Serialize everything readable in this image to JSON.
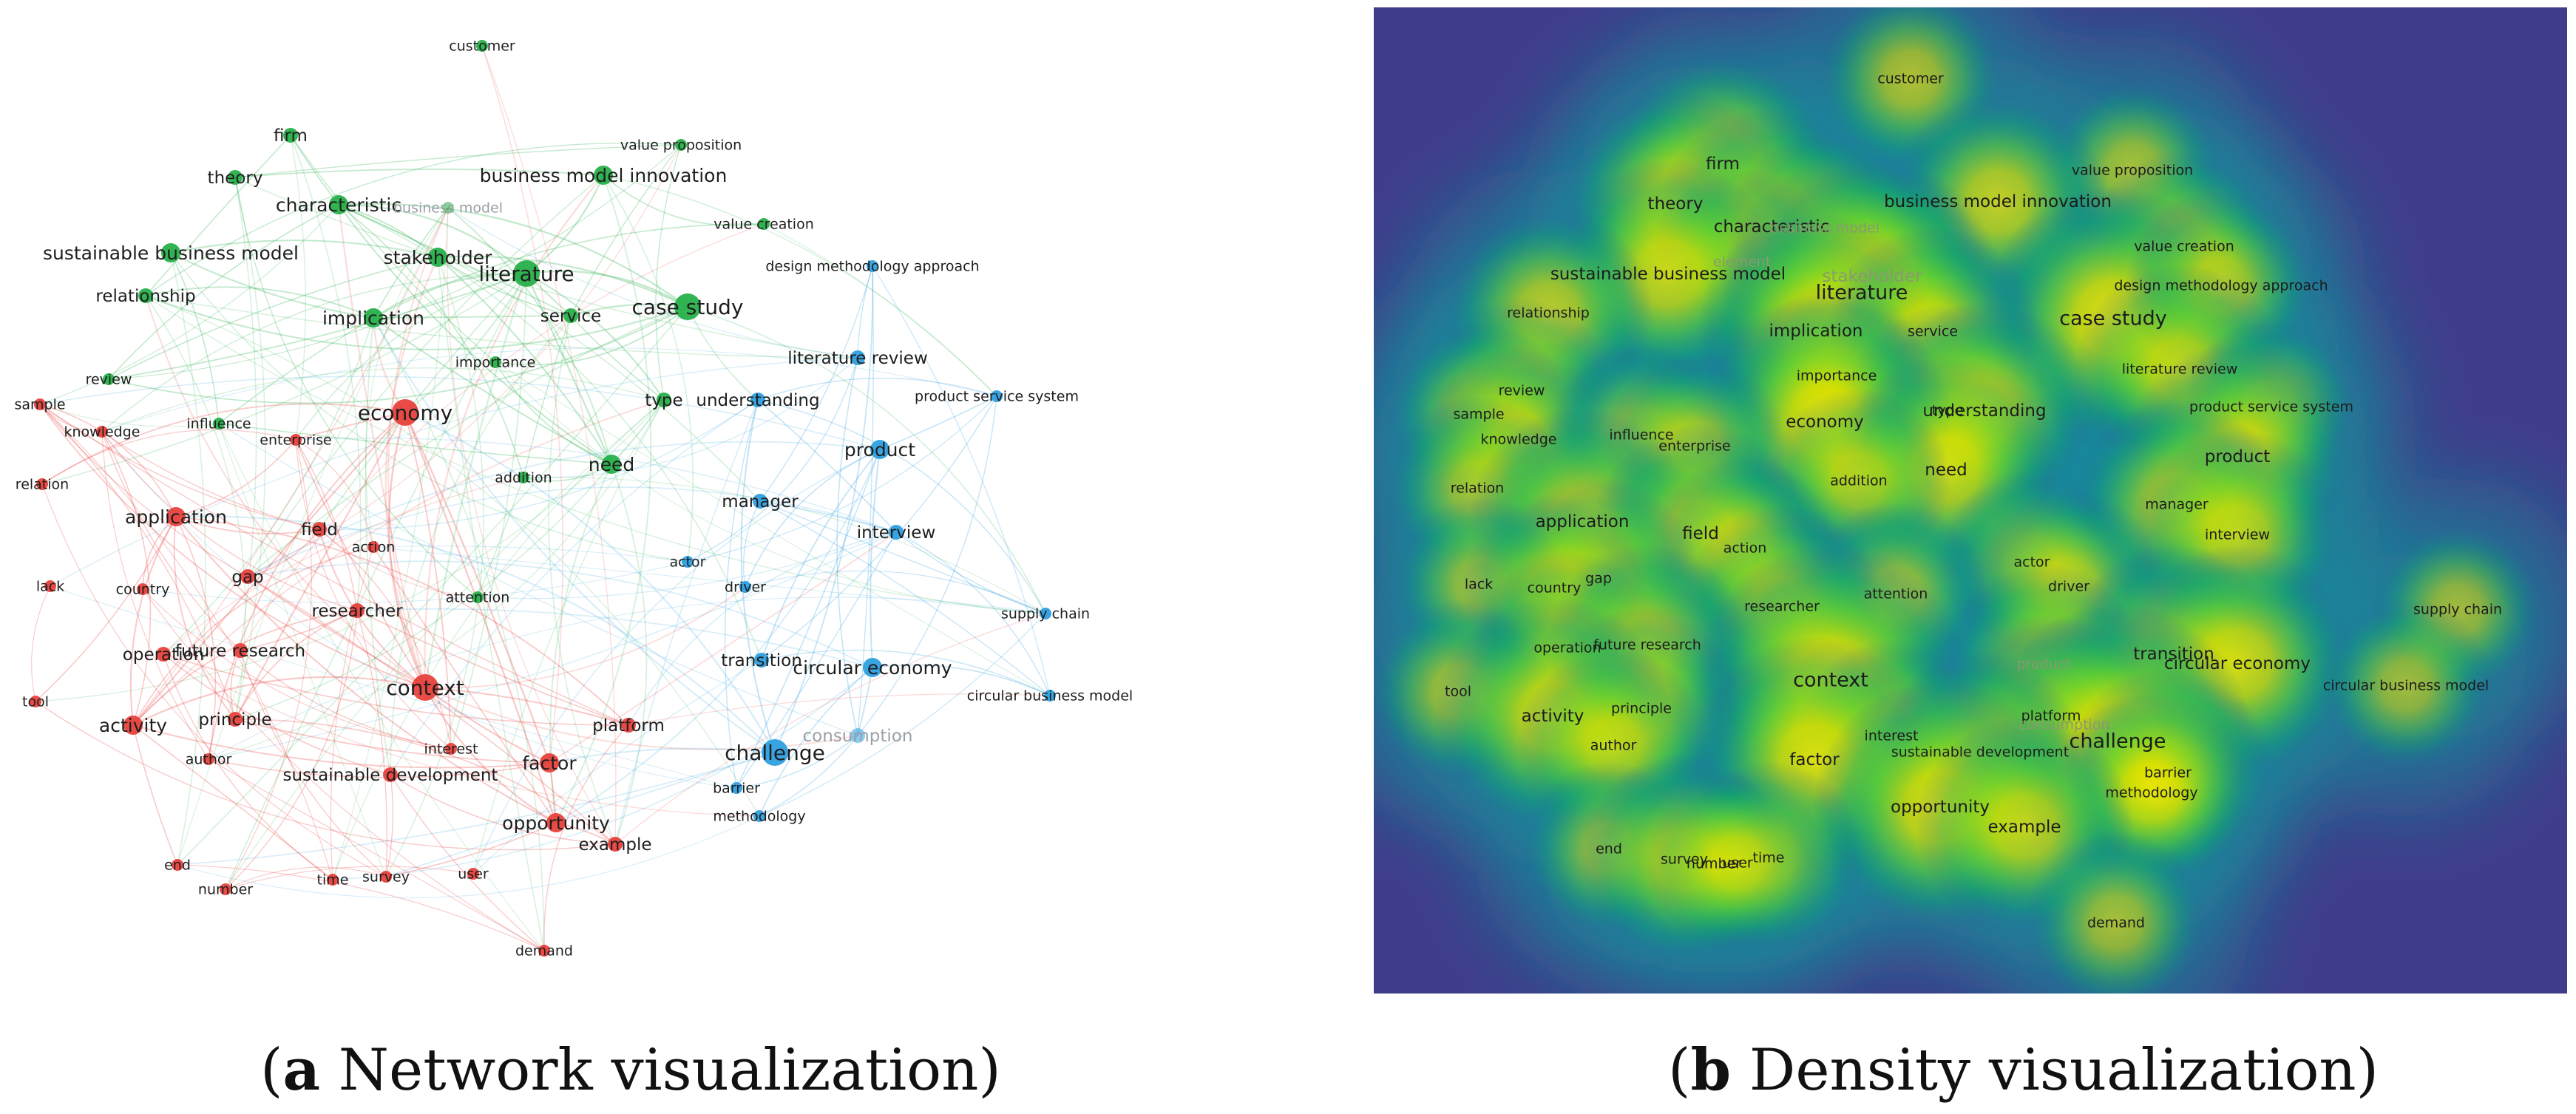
{
  "colors": {
    "cluster_red": "#e8413c",
    "cluster_green": "#27b04a",
    "cluster_blue": "#2e9fe0",
    "density_background": "#3f3d8a",
    "density_peak": "#fff200"
  },
  "captions": {
    "a": {
      "letter": "a",
      "text": " Network visualization"
    },
    "b": {
      "letter": "b",
      "text": " Density visualization"
    }
  },
  "network": {
    "nodes": [
      {
        "label": "customer",
        "cluster": "green",
        "w": 1
      },
      {
        "label": "firm",
        "cluster": "green",
        "w": 2
      },
      {
        "label": "value proposition",
        "cluster": "green",
        "w": 1
      },
      {
        "label": "theory",
        "cluster": "green",
        "w": 2
      },
      {
        "label": "business model innovation",
        "cluster": "green",
        "w": 3
      },
      {
        "label": "characteristic",
        "cluster": "green",
        "w": 3
      },
      {
        "label": "business model",
        "cluster": "green",
        "w": 1,
        "faded": true
      },
      {
        "label": "value creation",
        "cluster": "green",
        "w": 1
      },
      {
        "label": "sustainable business model",
        "cluster": "green",
        "w": 3
      },
      {
        "label": "stakeholder",
        "cluster": "green",
        "w": 3
      },
      {
        "label": "literature",
        "cluster": "green",
        "w": 4
      },
      {
        "label": "case study",
        "cluster": "green",
        "w": 4
      },
      {
        "label": "relationship",
        "cluster": "green",
        "w": 2
      },
      {
        "label": "implication",
        "cluster": "green",
        "w": 3
      },
      {
        "label": "service",
        "cluster": "green",
        "w": 2
      },
      {
        "label": "importance",
        "cluster": "green",
        "w": 1
      },
      {
        "label": "review",
        "cluster": "green",
        "w": 1
      },
      {
        "label": "influence",
        "cluster": "green",
        "w": 1
      },
      {
        "label": "type",
        "cluster": "green",
        "w": 2
      },
      {
        "label": "addition",
        "cluster": "green",
        "w": 1
      },
      {
        "label": "need",
        "cluster": "green",
        "w": 3
      },
      {
        "label": "attention",
        "cluster": "green",
        "w": 1
      },
      {
        "label": "design methodology approach",
        "cluster": "blue",
        "w": 1
      },
      {
        "label": "literature review",
        "cluster": "blue",
        "w": 2
      },
      {
        "label": "understanding",
        "cluster": "blue",
        "w": 2
      },
      {
        "label": "product service system",
        "cluster": "blue",
        "w": 1
      },
      {
        "label": "product",
        "cluster": "blue",
        "w": 3
      },
      {
        "label": "manager",
        "cluster": "blue",
        "w": 2
      },
      {
        "label": "interview",
        "cluster": "blue",
        "w": 2
      },
      {
        "label": "actor",
        "cluster": "blue",
        "w": 1
      },
      {
        "label": "driver",
        "cluster": "blue",
        "w": 1
      },
      {
        "label": "supply chain",
        "cluster": "blue",
        "w": 1
      },
      {
        "label": "transition",
        "cluster": "blue",
        "w": 2
      },
      {
        "label": "circular economy",
        "cluster": "blue",
        "w": 3
      },
      {
        "label": "circular business model",
        "cluster": "blue",
        "w": 1
      },
      {
        "label": "consumption",
        "cluster": "blue",
        "w": 2,
        "faded": true
      },
      {
        "label": "challenge",
        "cluster": "blue",
        "w": 4
      },
      {
        "label": "barrier",
        "cluster": "blue",
        "w": 1
      },
      {
        "label": "methodology",
        "cluster": "blue",
        "w": 1
      },
      {
        "label": "sample",
        "cluster": "red",
        "w": 1
      },
      {
        "label": "knowledge",
        "cluster": "red",
        "w": 1
      },
      {
        "label": "economy",
        "cluster": "red",
        "w": 4
      },
      {
        "label": "enterprise",
        "cluster": "red",
        "w": 1
      },
      {
        "label": "relation",
        "cluster": "red",
        "w": 1
      },
      {
        "label": "application",
        "cluster": "red",
        "w": 3
      },
      {
        "label": "field",
        "cluster": "red",
        "w": 2
      },
      {
        "label": "action",
        "cluster": "red",
        "w": 1
      },
      {
        "label": "gap",
        "cluster": "red",
        "w": 2
      },
      {
        "label": "lack",
        "cluster": "red",
        "w": 1
      },
      {
        "label": "country",
        "cluster": "red",
        "w": 1
      },
      {
        "label": "researcher",
        "cluster": "red",
        "w": 2
      },
      {
        "label": "operation",
        "cluster": "red",
        "w": 2
      },
      {
        "label": "future research",
        "cluster": "red",
        "w": 2
      },
      {
        "label": "context",
        "cluster": "red",
        "w": 4
      },
      {
        "label": "tool",
        "cluster": "red",
        "w": 1
      },
      {
        "label": "activity",
        "cluster": "red",
        "w": 3
      },
      {
        "label": "principle",
        "cluster": "red",
        "w": 2
      },
      {
        "label": "platform",
        "cluster": "red",
        "w": 2
      },
      {
        "label": "interest",
        "cluster": "red",
        "w": 1
      },
      {
        "label": "author",
        "cluster": "red",
        "w": 1
      },
      {
        "label": "factor",
        "cluster": "red",
        "w": 3
      },
      {
        "label": "sustainable development",
        "cluster": "red",
        "w": 2
      },
      {
        "label": "opportunity",
        "cluster": "red",
        "w": 3
      },
      {
        "label": "example",
        "cluster": "red",
        "w": 2
      },
      {
        "label": "end",
        "cluster": "red",
        "w": 1
      },
      {
        "label": "time",
        "cluster": "red",
        "w": 1
      },
      {
        "label": "survey",
        "cluster": "red",
        "w": 1
      },
      {
        "label": "user",
        "cluster": "red",
        "w": 1
      },
      {
        "label": "number",
        "cluster": "red",
        "w": 1
      },
      {
        "label": "demand",
        "cluster": "red",
        "w": 1
      }
    ]
  },
  "density": {
    "labels": [
      {
        "label": "customer",
        "d": 0.5
      },
      {
        "label": "firm",
        "d": 0.7
      },
      {
        "label": "value proposition",
        "d": 0.45
      },
      {
        "label": "theory",
        "d": 0.7
      },
      {
        "label": "business model innovation",
        "d": 0.65
      },
      {
        "label": "characteristic",
        "d": 0.75
      },
      {
        "label": "business model",
        "d": 0.5,
        "faded": true
      },
      {
        "label": "value creation",
        "d": 0.5
      },
      {
        "label": "element",
        "d": 0.45,
        "faded": true
      },
      {
        "label": "sustainable business model",
        "d": 0.7
      },
      {
        "label": "stakeholder",
        "d": 0.7,
        "faded": true
      },
      {
        "label": "literature",
        "d": 1.0
      },
      {
        "label": "case study",
        "d": 0.9
      },
      {
        "label": "design methodology approach",
        "d": 0.5
      },
      {
        "label": "relationship",
        "d": 0.6
      },
      {
        "label": "implication",
        "d": 0.75
      },
      {
        "label": "service",
        "d": 0.6
      },
      {
        "label": "importance",
        "d": 0.45
      },
      {
        "label": "literature review",
        "d": 0.6
      },
      {
        "label": "review",
        "d": 0.45
      },
      {
        "label": "type",
        "d": 0.6
      },
      {
        "label": "understanding",
        "d": 0.65
      },
      {
        "label": "product service system",
        "d": 0.4
      },
      {
        "label": "sample",
        "d": 0.45
      },
      {
        "label": "economy",
        "d": 0.85
      },
      {
        "label": "knowledge",
        "d": 0.45
      },
      {
        "label": "influence",
        "d": 0.45
      },
      {
        "label": "enterprise",
        "d": 0.45
      },
      {
        "label": "product",
        "d": 0.7
      },
      {
        "label": "need",
        "d": 0.7
      },
      {
        "label": "addition",
        "d": 0.45
      },
      {
        "label": "relation",
        "d": 0.45
      },
      {
        "label": "manager",
        "d": 0.6
      },
      {
        "label": "application",
        "d": 0.7
      },
      {
        "label": "field",
        "d": 0.65
      },
      {
        "label": "interview",
        "d": 0.6
      },
      {
        "label": "action",
        "d": 0.45
      },
      {
        "label": "actor",
        "d": 0.45
      },
      {
        "label": "gap",
        "d": 0.55
      },
      {
        "label": "lack",
        "d": 0.4
      },
      {
        "label": "country",
        "d": 0.45
      },
      {
        "label": "driver",
        "d": 0.5
      },
      {
        "label": "attention",
        "d": 0.45
      },
      {
        "label": "researcher",
        "d": 0.55
      },
      {
        "label": "supply chain",
        "d": 0.4
      },
      {
        "label": "operation",
        "d": 0.5
      },
      {
        "label": "future research",
        "d": 0.55
      },
      {
        "label": "transition",
        "d": 0.65
      },
      {
        "label": "product",
        "d": 0.55,
        "faded": true
      },
      {
        "label": "circular economy",
        "d": 0.75
      },
      {
        "label": "context",
        "d": 0.95
      },
      {
        "label": "circular business model",
        "d": 0.4
      },
      {
        "label": "tool",
        "d": 0.45
      },
      {
        "label": "principle",
        "d": 0.55
      },
      {
        "label": "activity",
        "d": 0.75
      },
      {
        "label": "platform",
        "d": 0.55
      },
      {
        "label": "consumption",
        "d": 0.6,
        "faded": true
      },
      {
        "label": "interest",
        "d": 0.5
      },
      {
        "label": "challenge",
        "d": 0.95
      },
      {
        "label": "author",
        "d": 0.5
      },
      {
        "label": "factor",
        "d": 0.8
      },
      {
        "label": "sustainable development",
        "d": 0.55
      },
      {
        "label": "barrier",
        "d": 0.6
      },
      {
        "label": "methodology",
        "d": 0.55
      },
      {
        "label": "opportunity",
        "d": 0.85
      },
      {
        "label": "example",
        "d": 0.65
      },
      {
        "label": "end",
        "d": 0.4
      },
      {
        "label": "number",
        "d": 0.45
      },
      {
        "label": "time",
        "d": 0.5
      },
      {
        "label": "survey",
        "d": 0.6
      },
      {
        "label": "user",
        "d": 0.45
      },
      {
        "label": "demand",
        "d": 0.45
      }
    ]
  }
}
